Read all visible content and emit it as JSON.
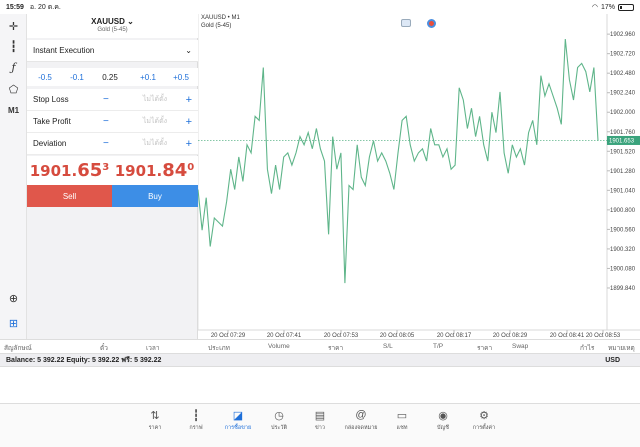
{
  "status_bar": {
    "time": "15:59",
    "date": "อ. 20 ต.ค.",
    "battery": "17%"
  },
  "tools": [
    "crosshair-icon",
    "candles-icon",
    "function-icon",
    "objects-icon",
    "M1"
  ],
  "panel": {
    "symbol": "XAUUSD",
    "symbol_desc": "Gold (5-45)",
    "execution": "Instant Execution",
    "volume": {
      "m05": "-0.5",
      "m01": "-0.1",
      "value": "0.25",
      "p01": "+0.1",
      "p05": "+0.5"
    },
    "stop_loss": {
      "label": "Stop Loss",
      "placeholder": "ไม่ได้ตั้ง"
    },
    "take_profit": {
      "label": "Take Profit",
      "placeholder": "ไม่ได้ตั้ง"
    },
    "deviation": {
      "label": "Deviation",
      "placeholder": "ไม่ได้ตั้ง"
    },
    "bid": {
      "main": "1901.",
      "big": "65",
      "sup": "3"
    },
    "ask": {
      "main": "1901.",
      "big": "84",
      "sup": "0"
    },
    "sell_label": "Sell",
    "buy_label": "Buy"
  },
  "chart_data": {
    "type": "line",
    "title": "XAUUSD • M1",
    "subtitle": "Gold (5-45)",
    "current_price": "1901.653",
    "ylim": [
      1899.52,
      1903.06
    ],
    "yticks": [
      "1902.960",
      "1902.720",
      "1902.480",
      "1902.240",
      "1902.000",
      "1901.760",
      "1901.520",
      "1901.280",
      "1901.040",
      "1900.800",
      "1900.560",
      "1900.320",
      "1900.080",
      "1899.840"
    ],
    "xticks": [
      "20 Oct 07:29",
      "20 Oct 07:41",
      "20 Oct 07:53",
      "20 Oct 08:05",
      "20 Oct 08:17",
      "20 Oct 08:29",
      "20 Oct 08:41",
      "20 Oct 08:53"
    ],
    "series": [
      {
        "color": "#5fb58a",
        "values": [
          1901.05,
          1900.55,
          1900.95,
          1900.35,
          1900.7,
          1900.65,
          1900.6,
          1900.9,
          1901.3,
          1901.05,
          1901.45,
          1901.15,
          1901.6,
          1901.5,
          1901.95,
          1901.9,
          1902.55,
          1901.3,
          1901.0,
          1901.35,
          1901.05,
          1901.45,
          1901.5,
          1901.35,
          1901.5,
          1901.7,
          1901.6,
          1901.75,
          1901.55,
          1901.8,
          1901.55,
          1901.4,
          1900.5,
          1901.7,
          1901.3,
          1901.5,
          1899.9,
          1901.1,
          1901.05,
          1901.6,
          1901.2,
          1901.1,
          1901.45,
          1901.65,
          1901.4,
          1901.5,
          1901.4,
          1901.25,
          1901.05,
          1901.5,
          1901.9,
          1901.95,
          1901.6,
          1901.4,
          1901.5,
          1901.55,
          1901.4,
          1901.8,
          1901.6,
          1901.6,
          1901.45,
          1901.55,
          1901.3,
          1901.35,
          1902.3,
          1902.15,
          1901.8,
          1902.05,
          1901.7,
          1901.95,
          1901.6,
          1901.4,
          1902.0,
          1901.75,
          1902.25,
          1901.5,
          1901.25,
          1901.6,
          1901.45,
          1901.55,
          1901.35,
          1901.75,
          1901.9,
          1901.6,
          1902.45,
          1902.2,
          1902.35,
          1902.2,
          1902.05,
          1901.85,
          1902.9,
          1902.4,
          1902.15,
          1902.55,
          1902.6,
          1902.5,
          1902.25,
          1902.55,
          1901.65
        ]
      }
    ]
  },
  "table_headers": [
    "สัญลักษณ์",
    "ตั๋ว",
    "เวลา",
    "ประเภท",
    "Volume",
    "ราคา",
    "S/L",
    "T/P",
    "ราคา",
    "Swap",
    "กำไร",
    "หมายเหตุ"
  ],
  "balance": {
    "text": "Balance: 5 392.22 Equity: 5 392.22 ฟรี: 5 392.22",
    "currency": "USD"
  },
  "nav": [
    {
      "icon": "quotes-icon",
      "label": "ราคา"
    },
    {
      "icon": "chart-icon",
      "label": "กราฟ"
    },
    {
      "icon": "trade-icon",
      "label": "การซื้อขาย"
    },
    {
      "icon": "history-icon",
      "label": "ประวัติ"
    },
    {
      "icon": "news-icon",
      "label": "ข่าว"
    },
    {
      "icon": "mailbox-icon",
      "label": "กล่องจดหมาย"
    },
    {
      "icon": "chat-icon",
      "label": "แชท"
    },
    {
      "icon": "account-icon",
      "label": "บัญชี"
    },
    {
      "icon": "settings-icon",
      "label": "การตั้งค่า"
    }
  ]
}
